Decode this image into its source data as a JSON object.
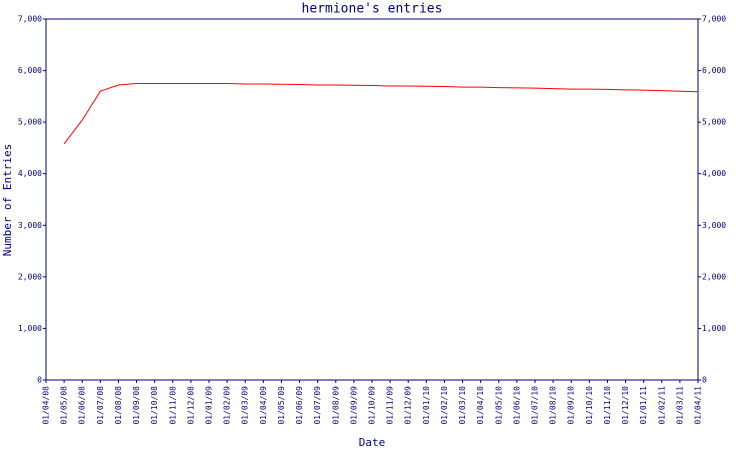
{
  "chart_data": {
    "type": "line",
    "title": "hermione's entries",
    "x_label": "Date",
    "y_label": "Number of Entries",
    "categories": [
      "01/04/08",
      "01/05/08",
      "01/06/08",
      "01/07/08",
      "01/08/08",
      "01/09/08",
      "01/10/08",
      "01/11/08",
      "01/12/08",
      "01/01/09",
      "01/02/09",
      "01/03/09",
      "01/04/09",
      "01/05/09",
      "01/06/09",
      "01/07/09",
      "01/08/09",
      "01/09/09",
      "01/10/09",
      "01/11/09",
      "01/12/09",
      "01/01/10",
      "01/02/10",
      "01/03/10",
      "01/04/10",
      "01/05/10",
      "01/06/10",
      "01/07/10",
      "01/08/10",
      "01/09/10",
      "01/10/10",
      "01/11/10",
      "01/12/10",
      "01/01/11",
      "01/02/11",
      "01/03/11",
      "01/04/11"
    ],
    "series": [
      {
        "name": "entries",
        "color": "#ff0000",
        "values": [
          null,
          4580,
          5040,
          5600,
          5720,
          5750,
          5750,
          5750,
          5750,
          5750,
          5750,
          5740,
          5740,
          5735,
          5730,
          5720,
          5720,
          5715,
          5710,
          5700,
          5700,
          5695,
          5690,
          5680,
          5680,
          5670,
          5665,
          5660,
          5650,
          5640,
          5640,
          5635,
          5625,
          5620,
          5610,
          5600,
          5590
        ]
      }
    ],
    "ylim": [
      0,
      7000
    ],
    "yticks": [
      0,
      {
        "value": 1000,
        "label": "1,000"
      },
      {
        "value": 2000,
        "label": "2,000"
      },
      {
        "value": 3000,
        "label": "3,000"
      },
      {
        "value": 4000,
        "label": "4,000"
      },
      {
        "value": 5000,
        "label": "5,000"
      },
      {
        "value": 6000,
        "label": "6,000"
      },
      {
        "value": 7000,
        "label": "7,000"
      }
    ],
    "axis_color": "#000080"
  }
}
